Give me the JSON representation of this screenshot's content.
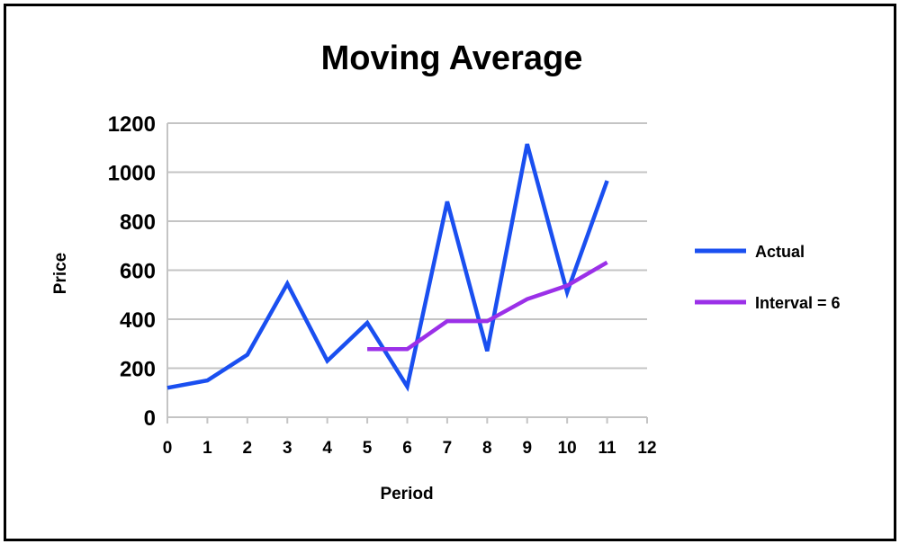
{
  "chart_data": {
    "type": "line",
    "title": "Moving Average",
    "xlabel": "Period",
    "ylabel": "Price",
    "xlim": [
      0,
      12
    ],
    "ylim": [
      0,
      1200
    ],
    "xticks": [
      "0",
      "1",
      "2",
      "3",
      "4",
      "5",
      "6",
      "7",
      "8",
      "9",
      "10",
      "11",
      "12"
    ],
    "yticks": [
      "0",
      "200",
      "400",
      "600",
      "800",
      "1000",
      "1200"
    ],
    "grid": true,
    "legend_position": "right",
    "series": [
      {
        "name": "Actual",
        "color": "#1a4ff0",
        "x": [
          0,
          1,
          2,
          3,
          4,
          5,
          6,
          7,
          8,
          9,
          10,
          11
        ],
        "values": [
          120,
          150,
          255,
          545,
          230,
          385,
          125,
          880,
          270,
          1115,
          510,
          965
        ]
      },
      {
        "name": "Interval = 6",
        "color": "#9b30e8",
        "x": [
          5,
          6,
          7,
          8,
          9,
          10,
          11
        ],
        "values": [
          278,
          278,
          392,
          392,
          482,
          537,
          632
        ]
      }
    ]
  }
}
